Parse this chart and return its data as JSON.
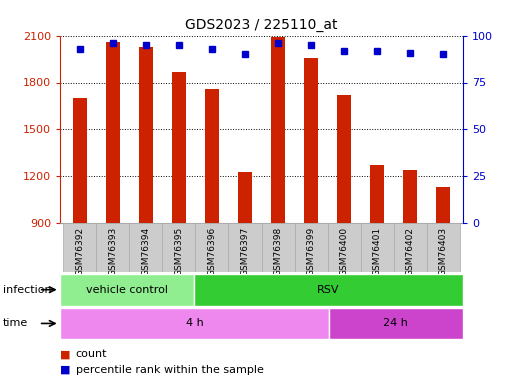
{
  "title": "GDS2023 / 225110_at",
  "samples": [
    "GSM76392",
    "GSM76393",
    "GSM76394",
    "GSM76395",
    "GSM76396",
    "GSM76397",
    "GSM76398",
    "GSM76399",
    "GSM76400",
    "GSM76401",
    "GSM76402",
    "GSM76403"
  ],
  "counts": [
    1700,
    2060,
    2030,
    1870,
    1760,
    1230,
    2090,
    1960,
    1720,
    1270,
    1240,
    1130
  ],
  "percentile_ranks": [
    93,
    96,
    95,
    95,
    93,
    90,
    96,
    95,
    92,
    92,
    91,
    90
  ],
  "ylim_left": [
    900,
    2100
  ],
  "ylim_right": [
    0,
    100
  ],
  "yticks_left": [
    900,
    1200,
    1500,
    1800,
    2100
  ],
  "yticks_right": [
    0,
    25,
    50,
    75,
    100
  ],
  "bar_color": "#cc2200",
  "dot_color": "#0000cc",
  "plot_bg": "#ffffff",
  "infection_labels": [
    {
      "label": "vehicle control",
      "start": 0,
      "end": 4,
      "color": "#90ee90"
    },
    {
      "label": "RSV",
      "start": 4,
      "end": 12,
      "color": "#33cc33"
    }
  ],
  "time_labels": [
    {
      "label": "4 h",
      "start": 0,
      "end": 8,
      "color": "#ee88ee"
    },
    {
      "label": "24 h",
      "start": 8,
      "end": 12,
      "color": "#cc44cc"
    }
  ],
  "legend_items": [
    {
      "label": "count",
      "color": "#cc2200"
    },
    {
      "label": "percentile rank within the sample",
      "color": "#0000cc"
    }
  ],
  "bar_width": 0.45,
  "infection_row_label": "infection",
  "time_row_label": "time",
  "sample_box_color": "#cccccc",
  "sample_box_edge": "#aaaaaa"
}
